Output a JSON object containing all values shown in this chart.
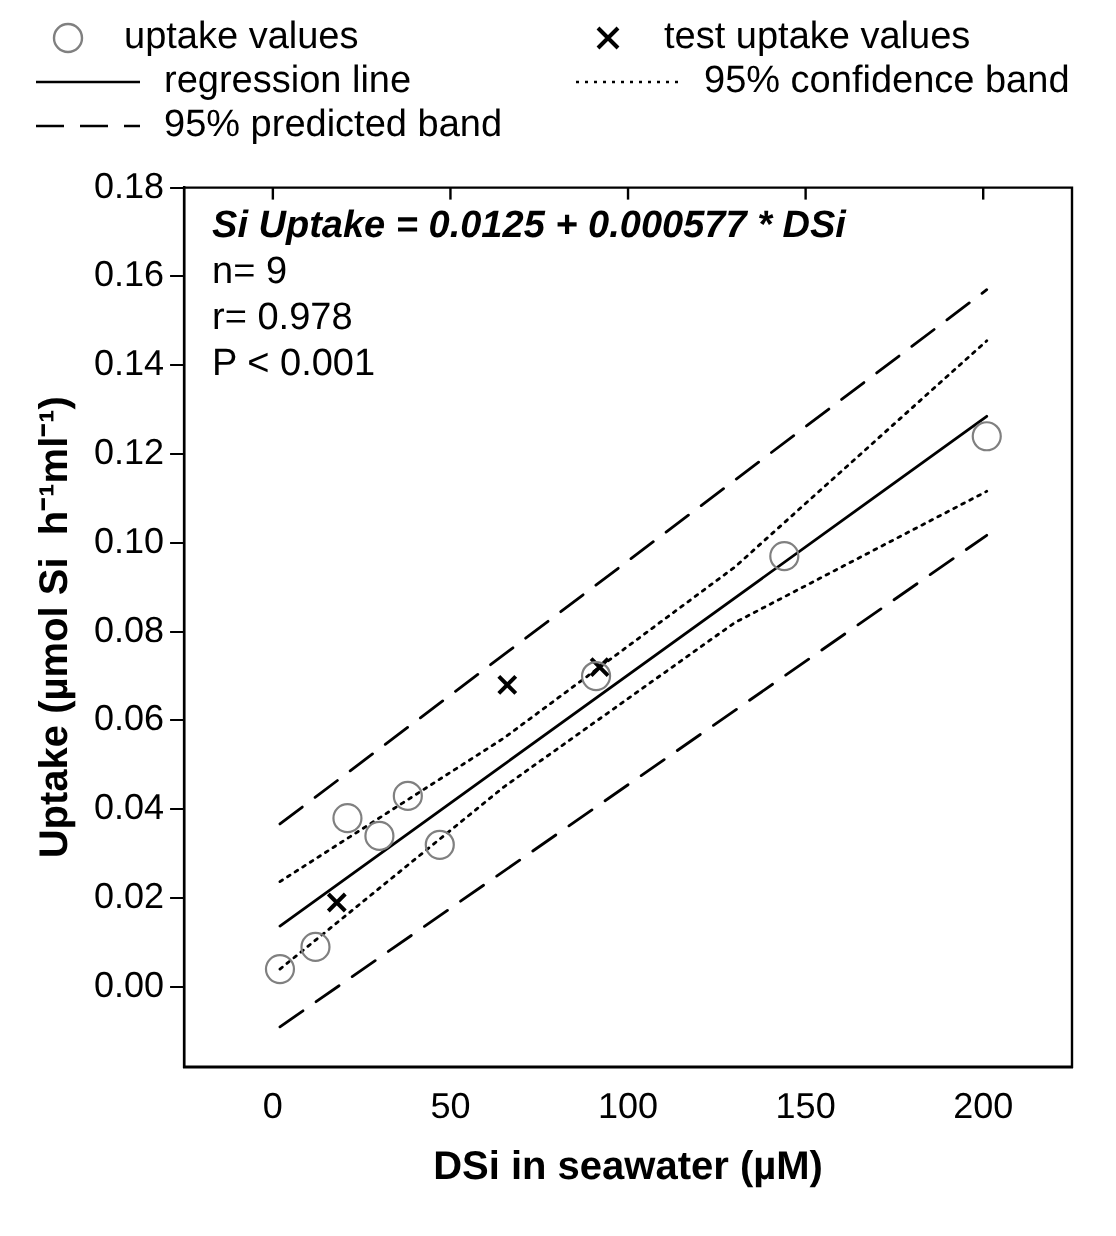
{
  "chart_data": {
    "type": "scatter",
    "xlabel": "DSi in seawater (µM)",
    "ylabel": "Uptake (µmol Si  h⁻¹ml⁻¹)",
    "xlim": [
      -25,
      225
    ],
    "xticks": [
      0,
      50,
      100,
      150,
      200
    ],
    "ylim": [
      -0.018,
      0.18
    ],
    "yticks": [
      {
        "value": 0,
        "label": "0.00"
      },
      0.02,
      0.04,
      0.06,
      0.08,
      {
        "value": 0.1,
        "label": "0.10"
      },
      0.12,
      0.14,
      0.16,
      0.18
    ],
    "grid": false,
    "legend": "top",
    "annotations": [
      "Si Uptake = 0.0125 + 0.000577 * DSi",
      "n= 9",
      "r= 0.978",
      "P < 0.001"
    ],
    "series": [
      {
        "name": "uptake values",
        "type": "scatter",
        "marker": "circle",
        "color": "#808080",
        "x": [
          2,
          12,
          21,
          30,
          38,
          47,
          91,
          144,
          201
        ],
        "values": [
          0.004,
          0.009,
          0.038,
          0.034,
          0.043,
          0.032,
          0.07,
          0.097,
          0.124
        ]
      },
      {
        "name": "test uptake values",
        "type": "scatter",
        "marker": "cross",
        "color": "#000000",
        "x": [
          18,
          66,
          92
        ],
        "values": [
          0.019,
          0.068,
          0.072
        ]
      },
      {
        "name": "regression line",
        "type": "line",
        "marker": "none",
        "line_style": "solid",
        "color": "#000000",
        "x": [
          2,
          201
        ],
        "values": [
          0.0137,
          0.1285
        ]
      },
      {
        "name": "95% confidence band",
        "type": "line",
        "marker": "none",
        "line_style": "dotted",
        "color": "#000000",
        "x": [
          2,
          65,
          130,
          201
        ],
        "values": [
          0.0237,
          0.056,
          0.0945,
          0.1455
        ]
      },
      {
        "type": "line",
        "marker": "none",
        "line_style": "dotted",
        "color": "#000000",
        "x": [
          2,
          65,
          130,
          201
        ],
        "values": [
          0.004,
          0.045,
          0.082,
          0.1116
        ]
      },
      {
        "name": "95% predicted band",
        "type": "line",
        "marker": "none",
        "line_style": "dashed",
        "color": "#000000",
        "x": [
          2,
          201
        ],
        "values": [
          0.0367,
          0.157
        ]
      },
      {
        "type": "line",
        "marker": "none",
        "line_style": "dashed",
        "color": "#000000",
        "x": [
          2,
          201
        ],
        "values": [
          -0.009,
          0.1017
        ]
      }
    ]
  }
}
